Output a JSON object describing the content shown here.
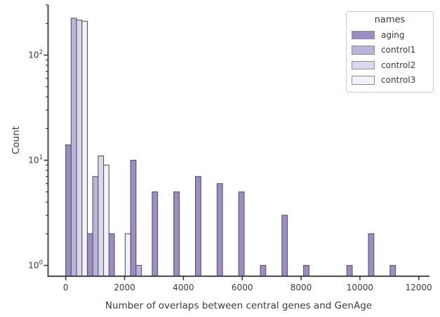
{
  "chart_data": {
    "type": "bar",
    "subtype": "histogram-log-count-dodged",
    "title": "",
    "xlabel": "Number of overlaps between central genes and GenAge",
    "ylabel": "Count",
    "yscale": "log",
    "xlim": [
      -600,
      12340
    ],
    "ylim": [
      0.79,
      300
    ],
    "grid": false,
    "bin_width": 735,
    "slot_width": 183.75,
    "x_ticks": [
      {
        "value": 0,
        "label": "0"
      },
      {
        "value": 2000,
        "label": "2000"
      },
      {
        "value": 4000,
        "label": "4000"
      },
      {
        "value": 6000,
        "label": "6000"
      },
      {
        "value": 8000,
        "label": "8000"
      },
      {
        "value": 10000,
        "label": "10000"
      },
      {
        "value": 12000,
        "label": "12000"
      }
    ],
    "y_ticks": [
      {
        "value": 1,
        "base": "10",
        "exp": "0"
      },
      {
        "value": 10,
        "base": "10",
        "exp": "1"
      },
      {
        "value": 100,
        "base": "10",
        "exp": "2"
      }
    ],
    "legend": {
      "title": "names",
      "position": "upper right"
    },
    "series": [
      {
        "name": "aging",
        "color": "#9c8ec5",
        "bars": [
          {
            "x": 0,
            "count": 14
          },
          {
            "x": 735,
            "count": 2
          },
          {
            "x": 1470,
            "count": 2
          },
          {
            "x": 2205,
            "count": 10
          },
          {
            "x": 2940,
            "count": 5
          },
          {
            "x": 3675,
            "count": 5
          },
          {
            "x": 4410,
            "count": 7
          },
          {
            "x": 5145,
            "count": 6
          },
          {
            "x": 5880,
            "count": 5
          },
          {
            "x": 6615,
            "count": 1
          },
          {
            "x": 7350,
            "count": 3
          },
          {
            "x": 8085,
            "count": 1
          },
          {
            "x": 9555,
            "count": 1
          },
          {
            "x": 10290,
            "count": 2
          },
          {
            "x": 11025,
            "count": 1
          }
        ]
      },
      {
        "name": "control1",
        "color": "#bab4da",
        "bars": [
          {
            "x": 0,
            "count": 224
          },
          {
            "x": 735,
            "count": 7
          },
          {
            "x": 2205,
            "count": 1
          }
        ]
      },
      {
        "name": "control2",
        "color": "#dad8ec",
        "bars": [
          {
            "x": 0,
            "count": 215
          },
          {
            "x": 735,
            "count": 11
          }
        ]
      },
      {
        "name": "control3",
        "color": "#f3f2f8",
        "bars": [
          {
            "x": 0,
            "count": 210
          },
          {
            "x": 735,
            "count": 9
          },
          {
            "x": 1470,
            "count": 2
          }
        ]
      }
    ],
    "colors": {
      "bar_edge": "#5d5765",
      "axis": "#3a3a42",
      "text": "#3b3b3b",
      "legend_border": "#cbcbcb",
      "swatch_border": "#8d8d8d",
      "background": "#ffffff"
    }
  }
}
